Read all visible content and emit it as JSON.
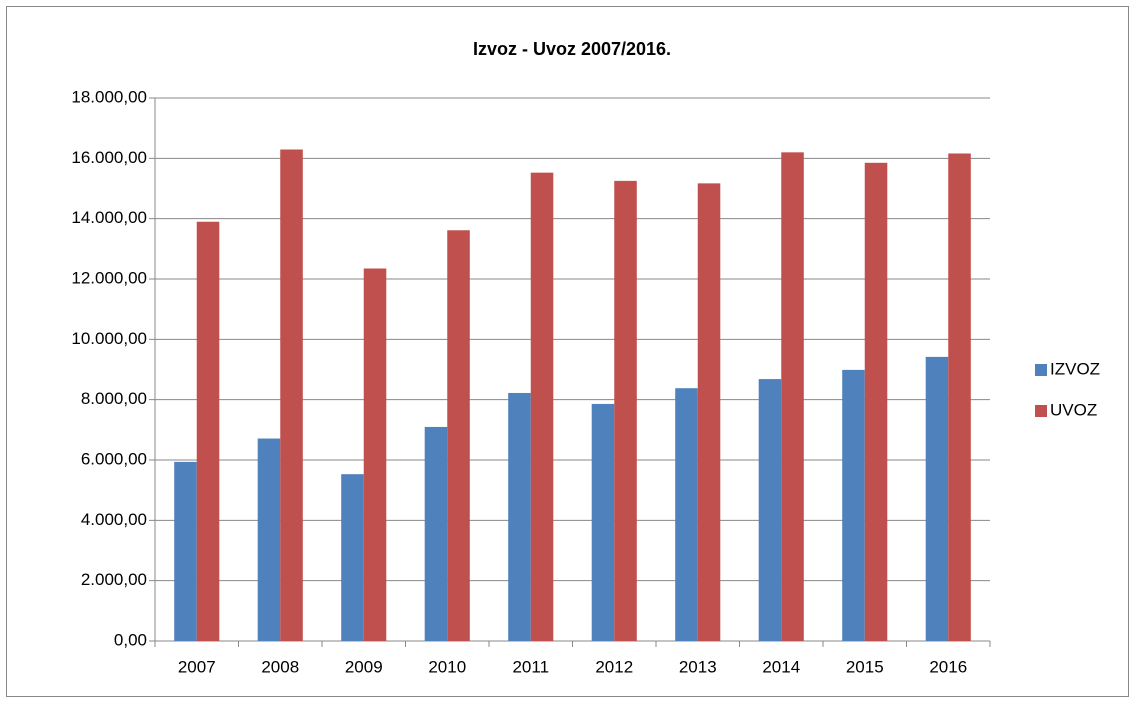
{
  "chart_data": {
    "type": "bar",
    "title": "Izvoz - Uvoz 2007/2016.",
    "categories": [
      "2007",
      "2008",
      "2009",
      "2010",
      "2011",
      "2012",
      "2013",
      "2014",
      "2015",
      "2016"
    ],
    "series": [
      {
        "name": "IZVOZ",
        "color": "#4f81bd",
        "values": [
          5937,
          6712,
          5530,
          7096,
          8222,
          7858,
          8380,
          8682,
          8987,
          9418
        ]
      },
      {
        "name": "UVOZ",
        "color": "#c0504d",
        "values": [
          13898,
          16293,
          12348,
          13616,
          15525,
          15253,
          15170,
          16199,
          15852,
          16161
        ]
      }
    ],
    "ylim": [
      0,
      18000
    ],
    "yticks": [
      {
        "value": 0,
        "label": "0,00"
      },
      {
        "value": 2000,
        "label": "2.000,00"
      },
      {
        "value": 4000,
        "label": "4.000,00"
      },
      {
        "value": 6000,
        "label": "6.000,00"
      },
      {
        "value": 8000,
        "label": "8.000,00"
      },
      {
        "value": 10000,
        "label": "10.000,00"
      },
      {
        "value": 12000,
        "label": "12.000,00"
      },
      {
        "value": 14000,
        "label": "14.000,00"
      },
      {
        "value": 16000,
        "label": "16.000,00"
      },
      {
        "value": 18000,
        "label": "18.000,00"
      }
    ],
    "grid": true,
    "legend": "right"
  }
}
